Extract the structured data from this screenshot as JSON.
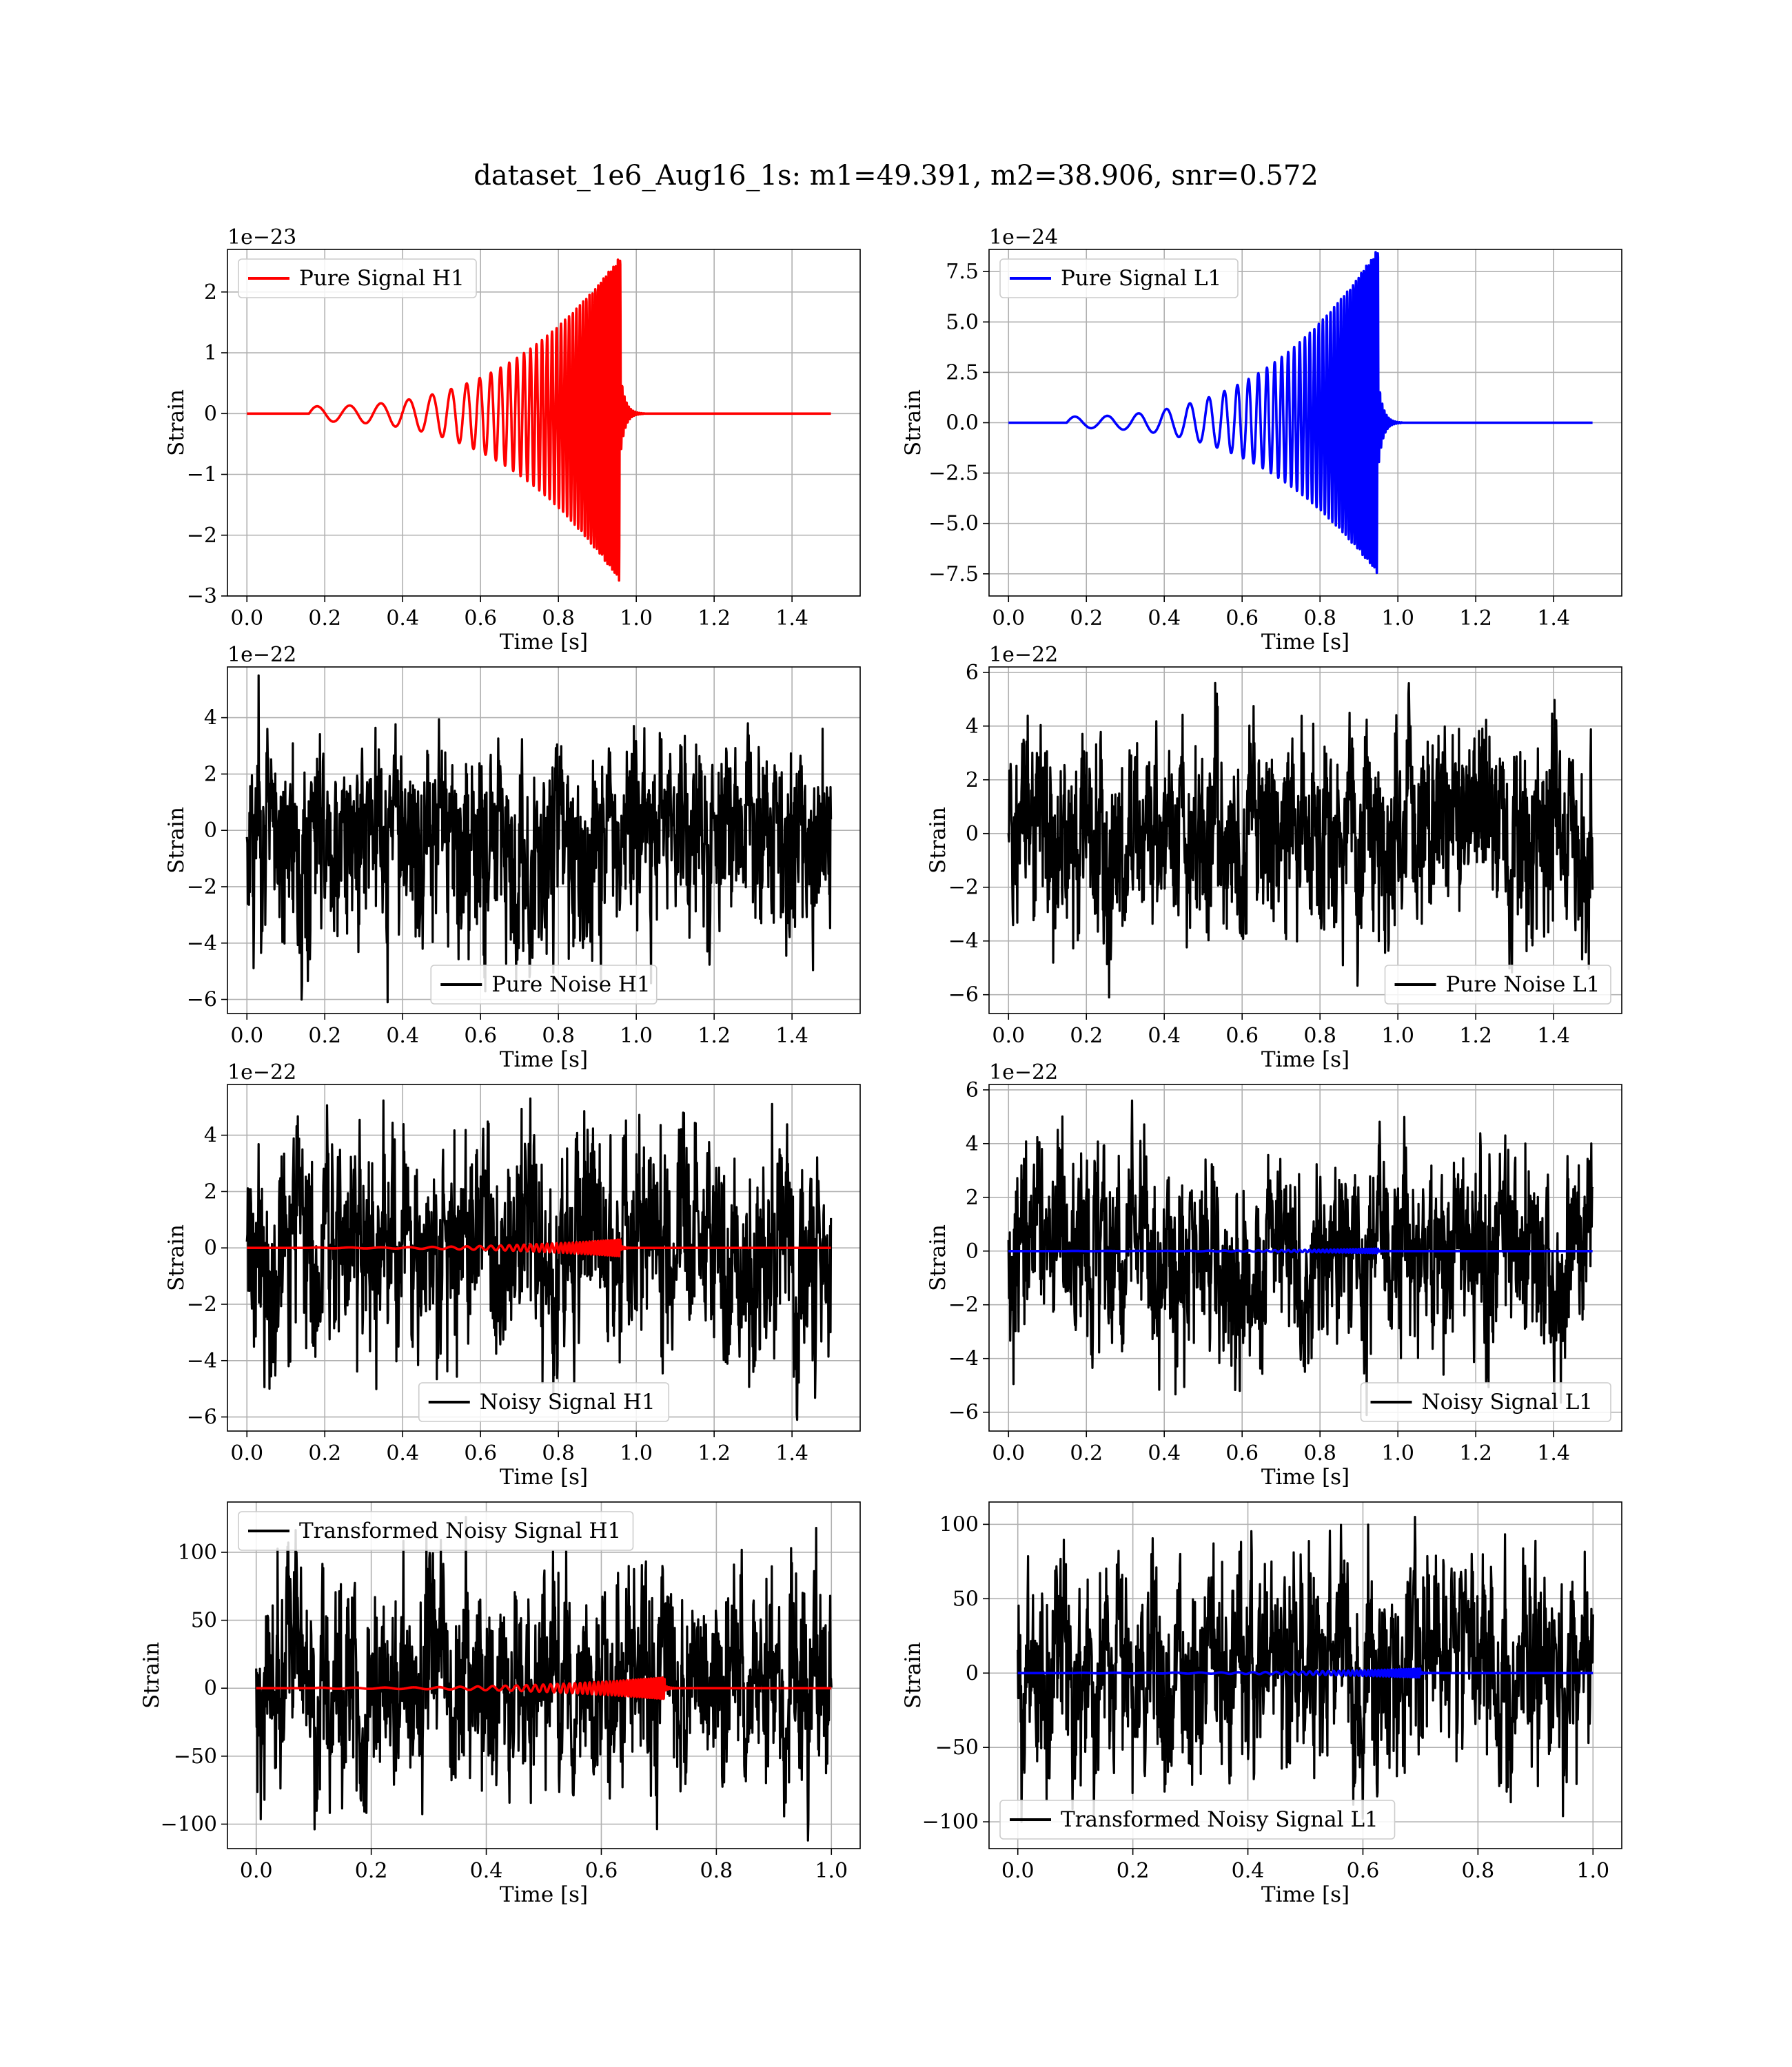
{
  "figure": {
    "suptitle": "dataset_1e6_Aug16_1s: m1=49.391, m2=38.906, snr=0.572"
  },
  "chart_data": [
    {
      "type": "line",
      "id": "h1-pure-signal",
      "xlabel": "Time [s]",
      "ylabel": "Strain",
      "y_offset_label": "1e−23",
      "xlim": [
        -0.05,
        1.575
      ],
      "ylim": [
        -3.0,
        2.7
      ],
      "xticks": [
        0.0,
        0.2,
        0.4,
        0.6,
        0.8,
        1.0,
        1.2,
        1.4
      ],
      "xtick_labels": [
        "0.0",
        "0.2",
        "0.4",
        "0.6",
        "0.8",
        "1.0",
        "1.2",
        "1.4"
      ],
      "yticks": [
        -3,
        -2,
        -1,
        0,
        1,
        2
      ],
      "ytick_labels": [
        "−3",
        "−2",
        "−1",
        "0",
        "1",
        "2"
      ],
      "grid": true,
      "legend_position": "upper left",
      "series": [
        {
          "name": "Pure Signal H1",
          "color": "#ff0000",
          "kind": "chirp",
          "x_range": [
            0.0,
            1.5
          ],
          "merger_time": 0.96,
          "peak_amplitude": 2.6,
          "min_amplitude": -2.8,
          "start_time": 0.16,
          "early_amplitude": 0.12
        }
      ]
    },
    {
      "type": "line",
      "id": "l1-pure-signal",
      "xlabel": "Time [s]",
      "ylabel": "Strain",
      "y_offset_label": "1e−24",
      "xlim": [
        -0.05,
        1.575
      ],
      "ylim": [
        -8.6,
        8.6
      ],
      "xticks": [
        0.0,
        0.2,
        0.4,
        0.6,
        0.8,
        1.0,
        1.2,
        1.4
      ],
      "xtick_labels": [
        "0.0",
        "0.2",
        "0.4",
        "0.6",
        "0.8",
        "1.0",
        "1.2",
        "1.4"
      ],
      "yticks": [
        -7.5,
        -5.0,
        -2.5,
        0.0,
        2.5,
        5.0,
        7.5
      ],
      "ytick_labels": [
        "−7.5",
        "−5.0",
        "−2.5",
        "0.0",
        "2.5",
        "5.0",
        "7.5"
      ],
      "grid": true,
      "legend_position": "upper left",
      "series": [
        {
          "name": "Pure Signal L1",
          "color": "#0000ff",
          "kind": "chirp",
          "x_range": [
            0.0,
            1.5
          ],
          "merger_time": 0.95,
          "peak_amplitude": 8.7,
          "min_amplitude": -7.6,
          "start_time": 0.15,
          "early_amplitude": 0.3
        }
      ]
    },
    {
      "type": "line",
      "id": "h1-pure-noise",
      "xlabel": "Time [s]",
      "ylabel": "Strain",
      "y_offset_label": "1e−22",
      "xlim": [
        -0.05,
        1.575
      ],
      "ylim": [
        -6.5,
        5.8
      ],
      "xticks": [
        0.0,
        0.2,
        0.4,
        0.6,
        0.8,
        1.0,
        1.2,
        1.4
      ],
      "xtick_labels": [
        "0.0",
        "0.2",
        "0.4",
        "0.6",
        "0.8",
        "1.0",
        "1.2",
        "1.4"
      ],
      "yticks": [
        -6,
        -4,
        -2,
        0,
        2,
        4
      ],
      "ytick_labels": [
        "−6",
        "−4",
        "−2",
        "0",
        "2",
        "4"
      ],
      "grid": true,
      "legend_position": "lower center",
      "series": [
        {
          "name": "Pure Noise H1",
          "color": "#000000",
          "kind": "noise",
          "x_range": [
            0.0,
            1.5
          ],
          "amplitude": 1.6,
          "max": 5.5,
          "min": -6.1
        }
      ]
    },
    {
      "type": "line",
      "id": "l1-pure-noise",
      "xlabel": "Time [s]",
      "ylabel": "Strain",
      "y_offset_label": "1e−22",
      "xlim": [
        -0.05,
        1.575
      ],
      "ylim": [
        -6.7,
        6.2
      ],
      "xticks": [
        0.0,
        0.2,
        0.4,
        0.6,
        0.8,
        1.0,
        1.2,
        1.4
      ],
      "xtick_labels": [
        "0.0",
        "0.2",
        "0.4",
        "0.6",
        "0.8",
        "1.0",
        "1.2",
        "1.4"
      ],
      "yticks": [
        -6,
        -4,
        -2,
        0,
        2,
        4,
        6
      ],
      "ytick_labels": [
        "−6",
        "−4",
        "−2",
        "0",
        "2",
        "4",
        "6"
      ],
      "grid": true,
      "legend_position": "lower right",
      "series": [
        {
          "name": "Pure Noise L1",
          "color": "#000000",
          "kind": "noise",
          "x_range": [
            0.0,
            1.5
          ],
          "amplitude": 1.7,
          "max": 5.6,
          "min": -6.1
        }
      ]
    },
    {
      "type": "line",
      "id": "h1-noisy-signal",
      "xlabel": "Time [s]",
      "ylabel": "Strain",
      "y_offset_label": "1e−22",
      "xlim": [
        -0.05,
        1.575
      ],
      "ylim": [
        -6.5,
        5.8
      ],
      "xticks": [
        0.0,
        0.2,
        0.4,
        0.6,
        0.8,
        1.0,
        1.2,
        1.4
      ],
      "xtick_labels": [
        "0.0",
        "0.2",
        "0.4",
        "0.6",
        "0.8",
        "1.0",
        "1.2",
        "1.4"
      ],
      "yticks": [
        -6,
        -4,
        -2,
        0,
        2,
        4
      ],
      "ytick_labels": [
        "−6",
        "−4",
        "−2",
        "0",
        "2",
        "4"
      ],
      "grid": true,
      "legend_position": "lower center",
      "series": [
        {
          "name": "Noisy Signal H1",
          "color": "#000000",
          "kind": "noise",
          "x_range": [
            0.0,
            1.5
          ],
          "amplitude": 1.6,
          "max": 5.3,
          "min": -6.1
        },
        {
          "name": "",
          "color": "#ff0000",
          "kind": "chirp",
          "x_range": [
            0.0,
            1.5
          ],
          "merger_time": 0.96,
          "peak_amplitude": 0.3,
          "min_amplitude": -0.3,
          "start_time": 0.16,
          "early_amplitude": 0.015
        }
      ]
    },
    {
      "type": "line",
      "id": "l1-noisy-signal",
      "xlabel": "Time [s]",
      "ylabel": "Strain",
      "y_offset_label": "1e−22",
      "xlim": [
        -0.05,
        1.575
      ],
      "ylim": [
        -6.7,
        6.2
      ],
      "xticks": [
        0.0,
        0.2,
        0.4,
        0.6,
        0.8,
        1.0,
        1.2,
        1.4
      ],
      "xtick_labels": [
        "0.0",
        "0.2",
        "0.4",
        "0.6",
        "0.8",
        "1.0",
        "1.2",
        "1.4"
      ],
      "yticks": [
        -6,
        -4,
        -2,
        0,
        2,
        4,
        6
      ],
      "ytick_labels": [
        "−6",
        "−4",
        "−2",
        "0",
        "2",
        "4",
        "6"
      ],
      "grid": true,
      "legend_position": "lower right",
      "series": [
        {
          "name": "Noisy Signal L1",
          "color": "#000000",
          "kind": "noise",
          "x_range": [
            0.0,
            1.5
          ],
          "amplitude": 1.7,
          "max": 5.6,
          "min": -6.1
        },
        {
          "name": "",
          "color": "#0000ff",
          "kind": "chirp",
          "x_range": [
            0.0,
            1.5
          ],
          "merger_time": 0.95,
          "peak_amplitude": 0.09,
          "min_amplitude": -0.08,
          "start_time": 0.15,
          "early_amplitude": 0.004
        }
      ]
    },
    {
      "type": "line",
      "id": "h1-transformed",
      "xlabel": "Time [s]",
      "ylabel": "Strain",
      "y_offset_label": "",
      "xlim": [
        -0.05,
        1.05
      ],
      "ylim": [
        -118,
        137
      ],
      "xticks": [
        0.0,
        0.2,
        0.4,
        0.6,
        0.8,
        1.0
      ],
      "xtick_labels": [
        "0.0",
        "0.2",
        "0.4",
        "0.6",
        "0.8",
        "1.0"
      ],
      "yticks": [
        -100,
        -50,
        0,
        50,
        100
      ],
      "ytick_labels": [
        "−100",
        "−50",
        "0",
        "50",
        "100"
      ],
      "grid": true,
      "legend_position": "upper left",
      "series": [
        {
          "name": "Transformed Noisy Signal H1",
          "color": "#000000",
          "kind": "noise",
          "x_range": [
            0.0,
            1.0
          ],
          "amplitude": 32,
          "max": 126,
          "min": -112
        },
        {
          "name": "",
          "color": "#ff0000",
          "kind": "chirp",
          "x_range": [
            0.0,
            1.0
          ],
          "merger_time": 0.71,
          "peak_amplitude": 8,
          "min_amplitude": -8,
          "start_time": 0.1,
          "early_amplitude": 0.4
        }
      ]
    },
    {
      "type": "line",
      "id": "l1-transformed",
      "xlabel": "Time [s]",
      "ylabel": "Strain",
      "y_offset_label": "",
      "xlim": [
        -0.05,
        1.05
      ],
      "ylim": [
        -118,
        115
      ],
      "xticks": [
        0.0,
        0.2,
        0.4,
        0.6,
        0.8,
        1.0
      ],
      "xtick_labels": [
        "0.0",
        "0.2",
        "0.4",
        "0.6",
        "0.8",
        "1.0"
      ],
      "yticks": [
        -100,
        -50,
        0,
        50,
        100
      ],
      "ytick_labels": [
        "−100",
        "−50",
        "0",
        "50",
        "100"
      ],
      "grid": true,
      "legend_position": "lower left",
      "series": [
        {
          "name": "Transformed Noisy Signal L1",
          "color": "#000000",
          "kind": "noise",
          "x_range": [
            0.0,
            1.0
          ],
          "amplitude": 30,
          "max": 105,
          "min": -100
        },
        {
          "name": "",
          "color": "#0000ff",
          "kind": "chirp",
          "x_range": [
            0.0,
            1.0
          ],
          "merger_time": 0.7,
          "peak_amplitude": 3,
          "min_amplitude": -3,
          "start_time": 0.1,
          "early_amplitude": 0.2
        }
      ]
    }
  ]
}
